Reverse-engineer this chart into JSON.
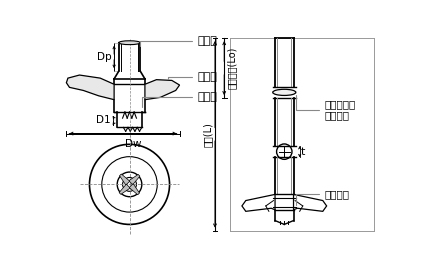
{
  "bg_color": "#ffffff",
  "line_color": "#000000",
  "gray_color": "#666666",
  "labels": {
    "steel_pipe": "鋼管杭",
    "tip_wing": "先端翼",
    "excavation_blade": "掘削刃",
    "pile_length": "杭長(L)",
    "unit_length": "杭単位長(Lo)",
    "weld_or_mech": "溶接または\n機械継手",
    "factory_weld": "工場溶接",
    "t_label": "t",
    "dp_label": "Dp",
    "d1_label": "D1",
    "dw_label": "Dw"
  }
}
